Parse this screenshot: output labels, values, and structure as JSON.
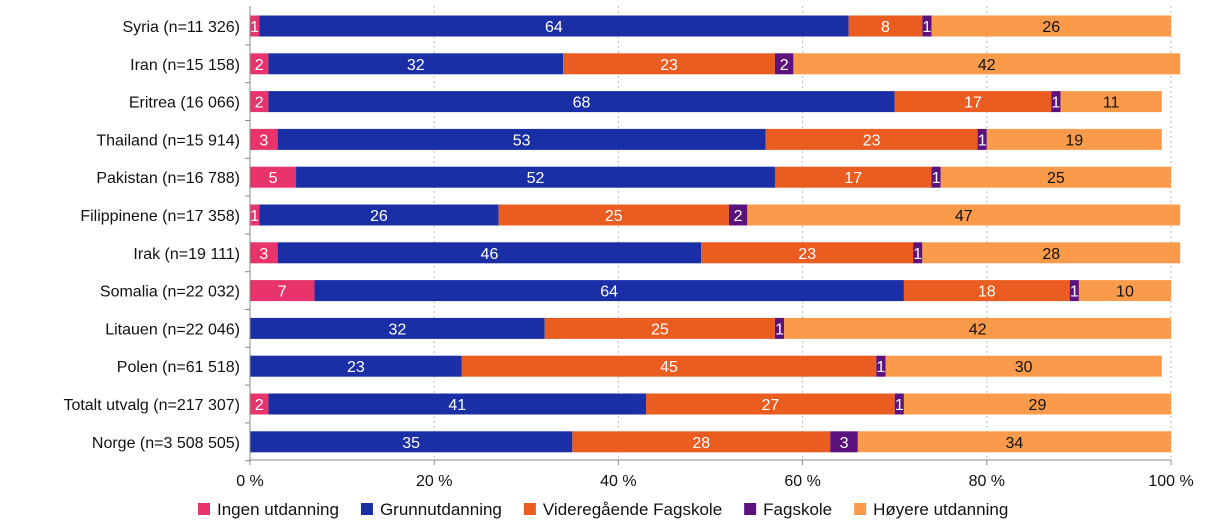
{
  "chart_data": {
    "type": "bar",
    "orientation": "horizontal",
    "stacked": true,
    "title": "",
    "xlabel": "",
    "ylabel": "",
    "xlim": [
      0,
      100
    ],
    "x_ticks": [
      "0 %",
      "20 %",
      "40 %",
      "60 %",
      "80 %",
      "100 %"
    ],
    "grid": "vertical dotted",
    "legend_position": "bottom",
    "categories": [
      "Syria (n=11 326)",
      "Iran (n=15 158)",
      "Eritrea (16 066)",
      "Thailand (n=15 914)",
      "Pakistan (n=16 788)",
      "Filippinene (n=17 358)",
      "Irak (n=19 111)",
      "Somalia (n=22 032)",
      "Litauen (n=22 046)",
      "Polen (n=61 518)",
      "Totalt utvalg (n=217 307)",
      "Norge (n=3 508 505)"
    ],
    "series": [
      {
        "name": "Ingen utdanning",
        "color": "#e8336d",
        "label_color": "#ffffff",
        "values": [
          1,
          2,
          2,
          3,
          5,
          1,
          3,
          7,
          0,
          0,
          2,
          0
        ]
      },
      {
        "name": "Grunnutdanning",
        "color": "#1a2fa5",
        "label_color": "#ffffff",
        "values": [
          64,
          32,
          68,
          53,
          52,
          26,
          46,
          64,
          32,
          23,
          41,
          35
        ]
      },
      {
        "name": "Videregående Fagskole",
        "color": "#eb5c21",
        "label_color": "#ffffff",
        "values": [
          8,
          23,
          17,
          23,
          17,
          25,
          23,
          18,
          25,
          45,
          27,
          28
        ]
      },
      {
        "name": "Fagskole",
        "color": "#5c127d",
        "label_color": "#ffffff",
        "values": [
          1,
          2,
          1,
          1,
          1,
          2,
          1,
          1,
          1,
          1,
          1,
          3
        ]
      },
      {
        "name": "Høyere utdanning",
        "color": "#f99b4a",
        "label_color": "#111111",
        "values": [
          26,
          42,
          11,
          19,
          25,
          47,
          28,
          10,
          42,
          30,
          29,
          34
        ]
      }
    ]
  }
}
